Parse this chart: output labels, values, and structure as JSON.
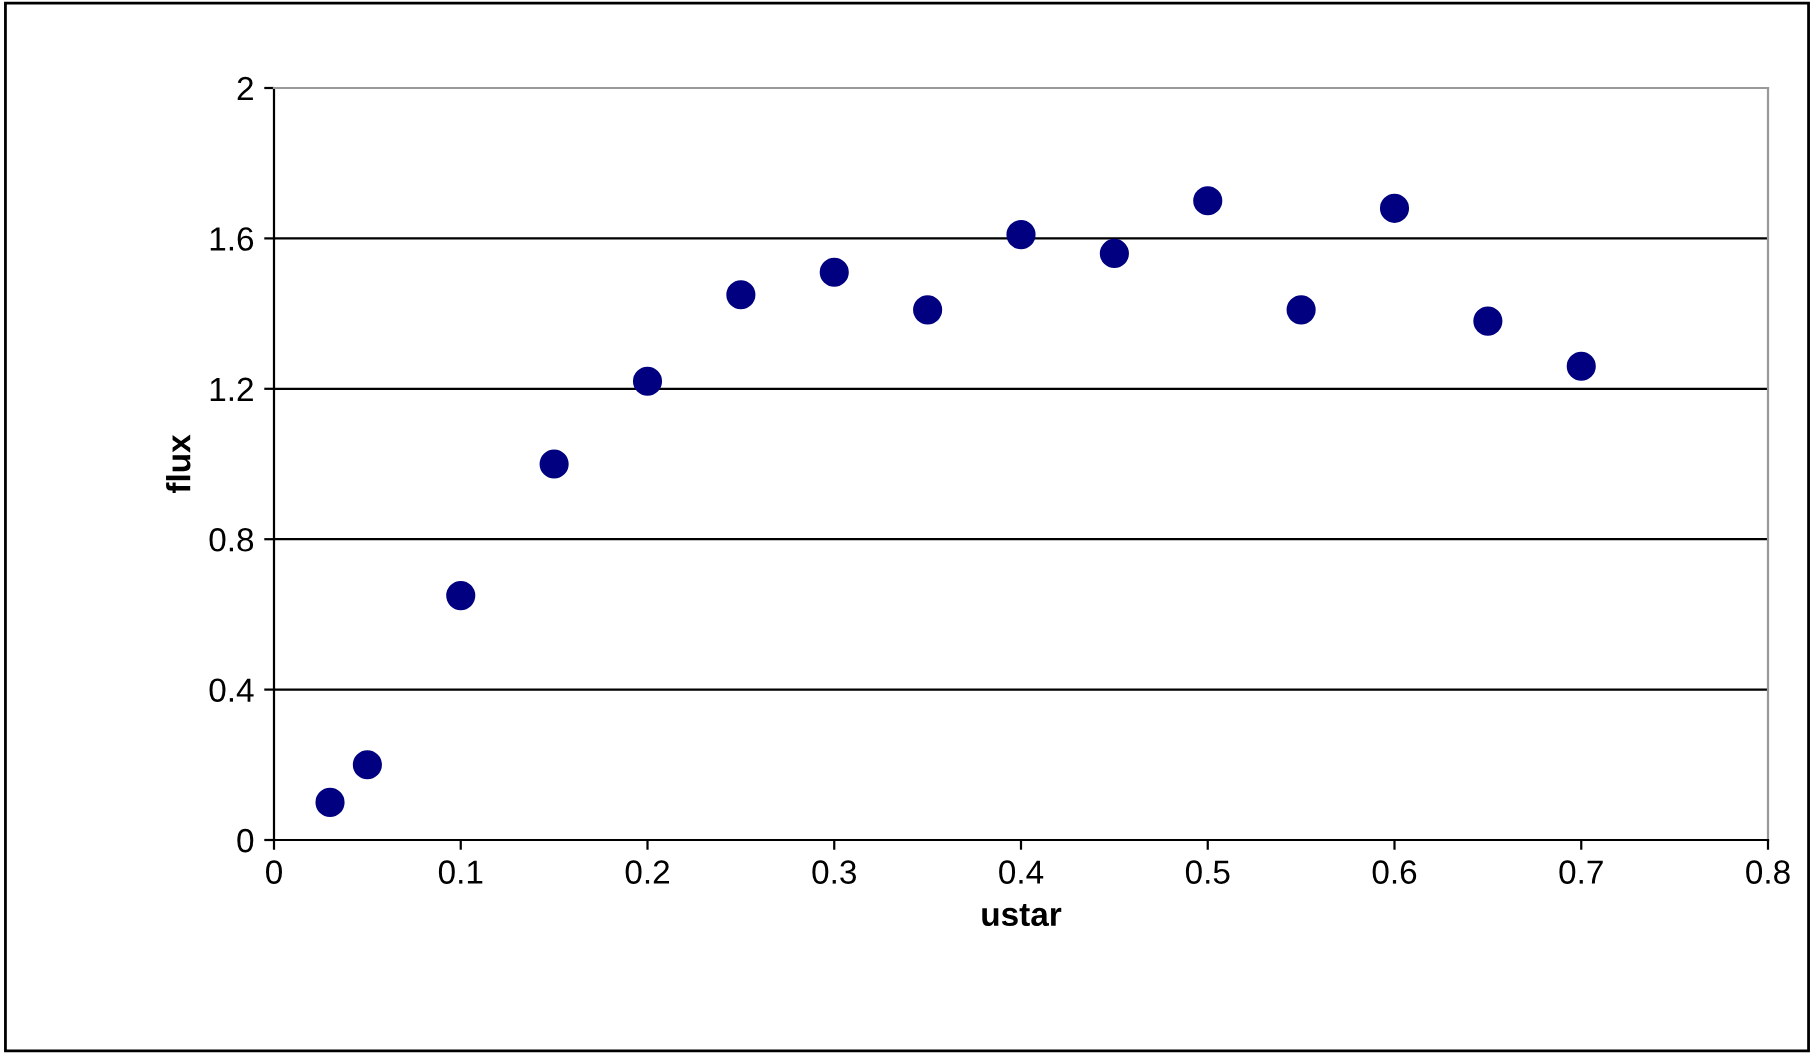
{
  "chart_data": {
    "type": "scatter",
    "xlabel": "ustar",
    "ylabel": "flux",
    "x": [
      0.03,
      0.05,
      0.1,
      0.15,
      0.2,
      0.25,
      0.3,
      0.35,
      0.4,
      0.45,
      0.5,
      0.55,
      0.6,
      0.65,
      0.7
    ],
    "series": [
      {
        "color": "#000080",
        "values": [
          0.1,
          0.2,
          0.65,
          1.0,
          1.22,
          1.45,
          1.51,
          1.41,
          1.61,
          1.56,
          1.7,
          1.41,
          1.68,
          1.38,
          1.26
        ]
      }
    ],
    "xlim": [
      0,
      0.8
    ],
    "xticks": [
      0,
      0.1,
      0.2,
      0.3,
      0.4,
      0.5,
      0.6,
      0.7,
      0.8
    ],
    "ylim": [
      0,
      2
    ],
    "yticks": [
      0,
      0.4,
      0.8,
      1.2,
      1.6,
      2
    ],
    "grid": "y",
    "marker": "circle",
    "legend": false
  }
}
